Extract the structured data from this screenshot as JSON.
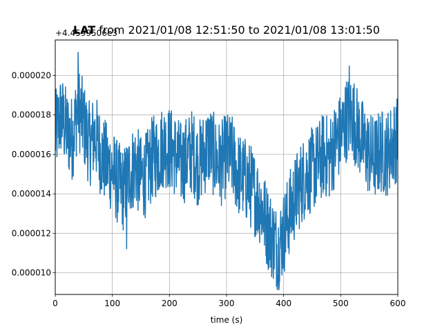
{
  "chart_data": {
    "type": "line",
    "title_bold": "LAT",
    "title_rest": " from 2021/01/08 12:51:50 to 2021/01/08 13:01:50",
    "offset_label": "+4.4599506e3",
    "xlabel": "time (s)",
    "ylabel": "",
    "xlim": [
      0,
      600
    ],
    "ylim": [
      8.9e-06,
      2.18e-05
    ],
    "x_ticks": [
      0,
      100,
      200,
      300,
      400,
      500,
      600
    ],
    "x_tick_labels": [
      "0",
      "100",
      "200",
      "300",
      "400",
      "500",
      "600"
    ],
    "y_ticks": [
      1e-05,
      1.2e-05,
      1.4e-05,
      1.6e-05,
      1.8e-05,
      2e-05
    ],
    "y_tick_labels": [
      "0.000010",
      "0.000012",
      "0.000014",
      "0.000016",
      "0.000018",
      "0.000020"
    ],
    "grid": true,
    "series": [
      {
        "color": "#1f77b4",
        "x": [
          0,
          10,
          20,
          30,
          40,
          50,
          60,
          70,
          80,
          90,
          100,
          110,
          120,
          130,
          140,
          150,
          160,
          170,
          180,
          190,
          200,
          210,
          220,
          230,
          240,
          250,
          260,
          270,
          280,
          290,
          300,
          310,
          320,
          330,
          340,
          350,
          360,
          370,
          380,
          390,
          400,
          410,
          420,
          430,
          440,
          450,
          460,
          470,
          480,
          490,
          500,
          510,
          520,
          530,
          540,
          550,
          560,
          570,
          580,
          590,
          600
        ],
        "y": [
          1.7e-05,
          1.8e-05,
          1.72e-05,
          1.68e-05,
          1.85e-05,
          1.75e-05,
          1.65e-05,
          1.7e-05,
          1.6e-05,
          1.55e-05,
          1.52e-05,
          1.45e-05,
          1.42e-05,
          1.5e-05,
          1.55e-05,
          1.48e-05,
          1.5e-05,
          1.58e-05,
          1.6e-05,
          1.65e-05,
          1.63e-05,
          1.6e-05,
          1.55e-05,
          1.58e-05,
          1.62e-05,
          1.55e-05,
          1.6e-05,
          1.65e-05,
          1.58e-05,
          1.55e-05,
          1.6e-05,
          1.58e-05,
          1.5e-05,
          1.48e-05,
          1.45e-05,
          1.4e-05,
          1.35e-05,
          1.25e-05,
          1.18e-05,
          1.12e-05,
          1.2e-05,
          1.3e-05,
          1.38e-05,
          1.45e-05,
          1.5e-05,
          1.52e-05,
          1.55e-05,
          1.6e-05,
          1.58e-05,
          1.65e-05,
          1.7e-05,
          1.78e-05,
          1.8e-05,
          1.72e-05,
          1.65e-05,
          1.6e-05,
          1.58e-05,
          1.62e-05,
          1.6e-05,
          1.65e-05,
          1.68e-05
        ],
        "peaks": [
          [
            40,
            2.12e-05
          ],
          [
            515,
            2.05e-05
          ],
          [
            390,
            9.5e-06
          ],
          [
            125,
            1.12e-05
          ]
        ]
      }
    ]
  }
}
